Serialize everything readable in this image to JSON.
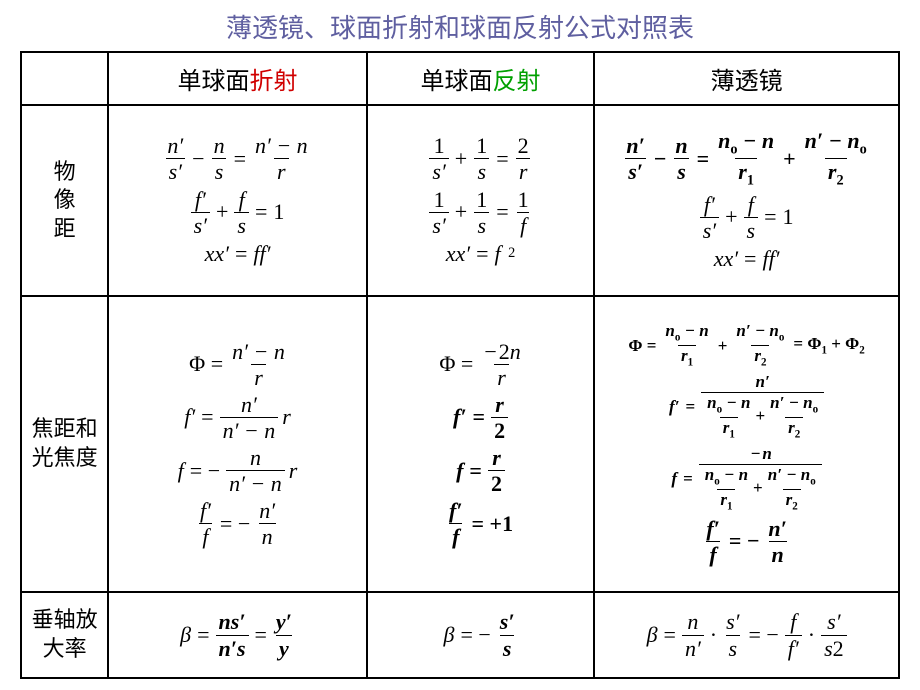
{
  "title": "薄透镜、球面折射和球面反射公式对照表",
  "colors": {
    "title": "#5f5fa0",
    "red": "#d00000",
    "green": "#00a000"
  },
  "columns": {
    "c1_pre": "单球面",
    "c1_hl": "折射",
    "c2_pre": "单球面",
    "c2_hl": "反射",
    "c3": "薄透镜"
  },
  "rows": {
    "r1": "物\n像\n距",
    "r2": "焦距和\n光焦度",
    "r3": "垂轴放\n大率"
  }
}
